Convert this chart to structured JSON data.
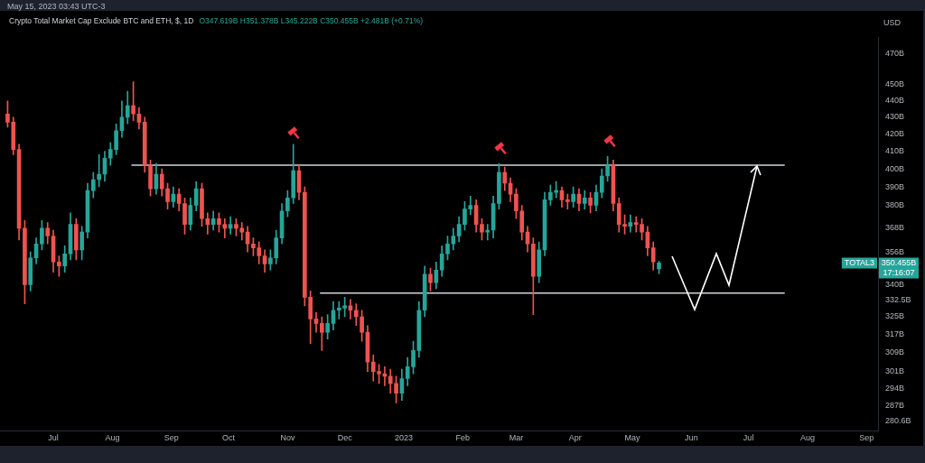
{
  "chart_data": {
    "type": "candlestick",
    "title": "Crypto Total Market Cap Exclude BTC and ETH, $, 1D",
    "subtitle": "O347.619B H351.378B L345.222B C350.455B +2.481B (+0.71%)",
    "annotations": [
      "USD",
      "May 15, 2023 03:43 UTC-3",
      {
        "text": "TOTAL3",
        "y": 350.455
      },
      "350.455B",
      "17:16:07"
    ],
    "log": "y",
    "colors": [
      "#ef5350",
      "#ef5350",
      "#ef5350",
      "#ef5350",
      "#26a69a",
      "#26a69a",
      "#26a69a",
      "#ef5350",
      "#ef5350",
      "#ef5350",
      "#26a69a",
      "#26a69a",
      "#ef5350",
      "#26a69a",
      "#26a69a",
      "#26a69a",
      "#26a69a",
      "#26a69a",
      "#26a69a",
      "#26a69a",
      "#26a69a",
      "#26a69a",
      "#ef5350",
      "#ef5350",
      "#ef5350",
      "#ef5350",
      "#26a69a",
      "#ef5350",
      "#ef5350",
      "#26a69a",
      "#ef5350",
      "#ef5350",
      "#26a69a",
      "#26a69a",
      "#ef5350",
      "#ef5350",
      "#26a69a",
      "#ef5350",
      "#ef5350",
      "#26a69a",
      "#ef5350",
      "#ef5350",
      "#ef5350",
      "#ef5350",
      "#ef5350",
      "#ef5350",
      "#26a69a",
      "#26a69a",
      "#26a69a",
      "#26a69a",
      "#26a69a",
      "#ef5350",
      "#ef5350",
      "#ef5350",
      "#ef5350",
      "#ef5350",
      "#26a69a",
      "#26a69a",
      "#26a69a",
      "#26a69a",
      "#ef5350",
      "#ef5350",
      "#ef5350",
      "#ef5350",
      "#ef5350",
      "#ef5350",
      "#ef5350",
      "#ef5350",
      "#ef5350",
      "#26a69a",
      "#26a69a",
      "#26a69a",
      "#26a69a",
      "#26a69a",
      "#ef5350",
      "#26a69a",
      "#26a69a",
      "#26a69a",
      "#26a69a",
      "#26a69a",
      "#26a69a",
      "#26a69a",
      "#ef5350",
      "#ef5350",
      "#26a69a",
      "#26a69a",
      "#26a69a",
      "#ef5350",
      "#ef5350",
      "#ef5350",
      "#ef5350",
      "#ef5350",
      "#ef5350",
      "#26a69a",
      "#26a69a",
      "#26a69a",
      "#26a69a",
      "#ef5350",
      "#ef5350",
      "#26a69a",
      "#ef5350",
      "#26a69a",
      "#ef5350",
      "#26a69a",
      "#26a69a",
      "#26a69a",
      "#ef5350",
      "#ef5350",
      "#ef5350",
      "#26a69a",
      "#ef5350",
      "#ef5350",
      "#ef5350",
      "#ef5350",
      "#26a69a"
    ],
    "xlim": [
      "2022-06-03",
      "2023-09-07"
    ],
    "xticks": [
      {
        "value": "2022-07-01",
        "label": "Jul"
      },
      {
        "value": "2022-08-01",
        "label": "Aug"
      },
      {
        "value": "2022-09-01",
        "label": "Sep"
      },
      {
        "value": "2022-10-01",
        "label": "Oct"
      },
      {
        "value": "2022-11-01",
        "label": "Nov"
      },
      {
        "value": "2022-12-01",
        "label": "Dec"
      },
      {
        "value": "2023-01-01",
        "label": "2023"
      },
      {
        "value": "2023-02-01",
        "label": "Feb"
      },
      {
        "value": "2023-03-01",
        "label": "Mar"
      },
      {
        "value": "2023-04-01",
        "label": "Apr"
      },
      {
        "value": "2023-05-01",
        "label": "May"
      },
      {
        "value": "2023-06-01",
        "label": "Jun"
      },
      {
        "value": "2023-07-01",
        "label": "Jul"
      },
      {
        "value": "2023-08-01",
        "label": "Aug"
      },
      {
        "value": "2023-09-01",
        "label": "Sep"
      }
    ],
    "ylim": [
      277,
      481
    ],
    "yticks": [
      {
        "value": 280.6,
        "label": "280.6B"
      },
      {
        "value": 287,
        "label": "287B"
      },
      {
        "value": 294,
        "label": "294B"
      },
      {
        "value": 301,
        "label": "301B"
      },
      {
        "value": 309,
        "label": "309B"
      },
      {
        "value": 317,
        "label": "317B"
      },
      {
        "value": 325,
        "label": "325B"
      },
      {
        "value": 332.5,
        "label": "332.5B"
      },
      {
        "value": 340,
        "label": "340B"
      },
      {
        "value": 356,
        "label": "356B"
      },
      {
        "value": 368,
        "label": "368B"
      },
      {
        "value": 380,
        "label": "380B"
      },
      {
        "value": 390,
        "label": "390B"
      },
      {
        "value": 400,
        "label": "400B"
      },
      {
        "value": 410,
        "label": "410B"
      },
      {
        "value": 420,
        "label": "420B"
      },
      {
        "value": 430,
        "label": "430B"
      },
      {
        "value": 440,
        "label": "440B"
      },
      {
        "value": 450,
        "label": "450B"
      },
      {
        "value": 470,
        "label": "470B"
      }
    ],
    "x": [
      "2022-06-07",
      "2022-06-10",
      "2022-06-13",
      "2022-06-16",
      "2022-06-19",
      "2022-06-22",
      "2022-06-25",
      "2022-06-28",
      "2022-07-01",
      "2022-07-04",
      "2022-07-07",
      "2022-07-10",
      "2022-07-13",
      "2022-07-16",
      "2022-07-19",
      "2022-07-22",
      "2022-07-25",
      "2022-07-28",
      "2022-07-31",
      "2022-08-03",
      "2022-08-06",
      "2022-08-09",
      "2022-08-12",
      "2022-08-15",
      "2022-08-18",
      "2022-08-21",
      "2022-08-24",
      "2022-08-27",
      "2022-08-30",
      "2022-09-02",
      "2022-09-05",
      "2022-09-08",
      "2022-09-11",
      "2022-09-14",
      "2022-09-17",
      "2022-09-20",
      "2022-09-23",
      "2022-09-26",
      "2022-09-29",
      "2022-10-02",
      "2022-10-05",
      "2022-10-08",
      "2022-10-11",
      "2022-10-14",
      "2022-10-17",
      "2022-10-20",
      "2022-10-23",
      "2022-10-26",
      "2022-10-29",
      "2022-11-01",
      "2022-11-04",
      "2022-11-07",
      "2022-11-10",
      "2022-11-13",
      "2022-11-16",
      "2022-11-19",
      "2022-11-22",
      "2022-11-25",
      "2022-11-28",
      "2022-12-01",
      "2022-12-04",
      "2022-12-07",
      "2022-12-10",
      "2022-12-13",
      "2022-12-16",
      "2022-12-19",
      "2022-12-22",
      "2022-12-25",
      "2022-12-28",
      "2022-12-31",
      "2023-01-03",
      "2023-01-06",
      "2023-01-09",
      "2023-01-12",
      "2023-01-15",
      "2023-01-18",
      "2023-01-21",
      "2023-01-24",
      "2023-01-27",
      "2023-01-30",
      "2023-02-02",
      "2023-02-05",
      "2023-02-08",
      "2023-02-11",
      "2023-02-14",
      "2023-02-17",
      "2023-02-20",
      "2023-02-23",
      "2023-02-26",
      "2023-03-01",
      "2023-03-04",
      "2023-03-07",
      "2023-03-10",
      "2023-03-13",
      "2023-03-16",
      "2023-03-19",
      "2023-03-22",
      "2023-03-25",
      "2023-03-28",
      "2023-03-31",
      "2023-04-03",
      "2023-04-06",
      "2023-04-09",
      "2023-04-12",
      "2023-04-15",
      "2023-04-18",
      "2023-04-21",
      "2023-04-24",
      "2023-04-27",
      "2023-04-30",
      "2023-05-03",
      "2023-05-06",
      "2023-05-09",
      "2023-05-12",
      "2023-05-15"
    ],
    "ohlc": [
      [
        432,
        440,
        424,
        427
      ],
      [
        427,
        430,
        408,
        411
      ],
      [
        411,
        414,
        362,
        368
      ],
      [
        368,
        372,
        331,
        340
      ],
      [
        340,
        356,
        337,
        353
      ],
      [
        353,
        363,
        350,
        360
      ],
      [
        360,
        372,
        357,
        368
      ],
      [
        368,
        371,
        360,
        364
      ],
      [
        364,
        367,
        346,
        351
      ],
      [
        351,
        354,
        344,
        349
      ],
      [
        349,
        359,
        346,
        355
      ],
      [
        355,
        376,
        352,
        370
      ],
      [
        370,
        373,
        352,
        357
      ],
      [
        357,
        369,
        352,
        366
      ],
      [
        366,
        392,
        363,
        388
      ],
      [
        388,
        398,
        384,
        394
      ],
      [
        394,
        408,
        390,
        397
      ],
      [
        397,
        410,
        393,
        406
      ],
      [
        406,
        415,
        402,
        411
      ],
      [
        411,
        426,
        408,
        422
      ],
      [
        422,
        440,
        418,
        430
      ],
      [
        430,
        446,
        426,
        437
      ],
      [
        437,
        452,
        428,
        432
      ],
      [
        432,
        436,
        423,
        427
      ],
      [
        427,
        430,
        398,
        402
      ],
      [
        402,
        405,
        385,
        389
      ],
      [
        389,
        403,
        386,
        397
      ],
      [
        397,
        400,
        385,
        389
      ],
      [
        389,
        392,
        378,
        382
      ],
      [
        382,
        390,
        379,
        386
      ],
      [
        386,
        389,
        377,
        381
      ],
      [
        381,
        384,
        365,
        370
      ],
      [
        370,
        384,
        367,
        380
      ],
      [
        380,
        393,
        377,
        389
      ],
      [
        389,
        392,
        369,
        373
      ],
      [
        373,
        376,
        365,
        370
      ],
      [
        370,
        377,
        367,
        373
      ],
      [
        373,
        376,
        366,
        370
      ],
      [
        370,
        373,
        363,
        368
      ],
      [
        368,
        374,
        365,
        370
      ],
      [
        370,
        373,
        364,
        368
      ],
      [
        368,
        371,
        362,
        366
      ],
      [
        366,
        369,
        356,
        360
      ],
      [
        360,
        363,
        354,
        358
      ],
      [
        358,
        361,
        350,
        354
      ],
      [
        354,
        357,
        346,
        350
      ],
      [
        350,
        357,
        347,
        353
      ],
      [
        353,
        367,
        350,
        363
      ],
      [
        363,
        381,
        360,
        377
      ],
      [
        377,
        388,
        374,
        384
      ],
      [
        384,
        414,
        381,
        399
      ],
      [
        399,
        402,
        383,
        387
      ],
      [
        387,
        390,
        330,
        334
      ],
      [
        334,
        337,
        313,
        324
      ],
      [
        324,
        327,
        318,
        322
      ],
      [
        322,
        325,
        310,
        318
      ],
      [
        318,
        326,
        315,
        322
      ],
      [
        322,
        332,
        319,
        328
      ],
      [
        328,
        332,
        324,
        329
      ],
      [
        329,
        334,
        325,
        330
      ],
      [
        330,
        333,
        324,
        328
      ],
      [
        328,
        331,
        321,
        325
      ],
      [
        325,
        328,
        314,
        318
      ],
      [
        318,
        321,
        301,
        305
      ],
      [
        305,
        308,
        297,
        301
      ],
      [
        301,
        304,
        296,
        300
      ],
      [
        300,
        303,
        295,
        299
      ],
      [
        299,
        302,
        292,
        296
      ],
      [
        296,
        299,
        288,
        292
      ],
      [
        292,
        302,
        289,
        298
      ],
      [
        298,
        307,
        295,
        303
      ],
      [
        303,
        314,
        300,
        310
      ],
      [
        310,
        332,
        307,
        328
      ],
      [
        328,
        349,
        325,
        345
      ],
      [
        345,
        348,
        337,
        341
      ],
      [
        341,
        351,
        338,
        347
      ],
      [
        347,
        359,
        344,
        355
      ],
      [
        355,
        364,
        352,
        360
      ],
      [
        360,
        368,
        357,
        364
      ],
      [
        364,
        374,
        361,
        370
      ],
      [
        370,
        382,
        367,
        378
      ],
      [
        378,
        385,
        375,
        380
      ],
      [
        380,
        383,
        366,
        370
      ],
      [
        370,
        373,
        362,
        366
      ],
      [
        366,
        370,
        362,
        367
      ],
      [
        367,
        385,
        363,
        381
      ],
      [
        381,
        403,
        378,
        398
      ],
      [
        398,
        401,
        388,
        392
      ],
      [
        392,
        395,
        382,
        386
      ],
      [
        386,
        389,
        373,
        377
      ],
      [
        377,
        380,
        362,
        366
      ],
      [
        366,
        369,
        356,
        360
      ],
      [
        360,
        363,
        326,
        344
      ],
      [
        344,
        361,
        341,
        357
      ],
      [
        357,
        387,
        354,
        383
      ],
      [
        383,
        391,
        380,
        387
      ],
      [
        387,
        393,
        384,
        388
      ],
      [
        388,
        390,
        379,
        383
      ],
      [
        383,
        386,
        378,
        382
      ],
      [
        382,
        390,
        379,
        386
      ],
      [
        386,
        389,
        377,
        381
      ],
      [
        381,
        388,
        378,
        384
      ],
      [
        384,
        387,
        376,
        380
      ],
      [
        380,
        391,
        377,
        387
      ],
      [
        387,
        400,
        384,
        396
      ],
      [
        396,
        407,
        393,
        402
      ],
      [
        402,
        405,
        377,
        381
      ],
      [
        381,
        384,
        366,
        370
      ],
      [
        370,
        375,
        365,
        369
      ],
      [
        369,
        375,
        366,
        371
      ],
      [
        371,
        374,
        366,
        370
      ],
      [
        370,
        373,
        362,
        366
      ],
      [
        366,
        369,
        354,
        358
      ],
      [
        358,
        361,
        347,
        351
      ],
      [
        347.619,
        351.378,
        345.222,
        350.455
      ]
    ],
    "series": [
      {
        "type": "line",
        "color": "#d1d4dc",
        "x": [
          "2022-08-11",
          "2023-07-20"
        ],
        "values": [
          402,
          402
        ]
      },
      {
        "type": "line",
        "color": "#d1d4dc",
        "x": [
          "2022-11-18",
          "2023-07-20"
        ],
        "values": [
          336,
          336
        ]
      }
    ]
  }
}
